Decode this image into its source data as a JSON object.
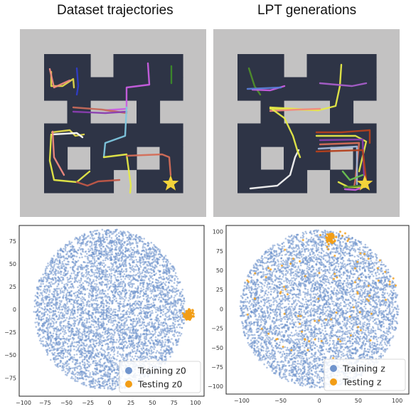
{
  "titles": {
    "left": "Dataset trajectories",
    "right": "LPT generations"
  },
  "colors": {
    "maze_background": "#c3c2c2",
    "maze_cell": "#2e3446",
    "star": "#f3d43a",
    "training_points": "#6f93cc",
    "testing_points": "#f29d16"
  },
  "icons": {
    "goal": "star-icon"
  },
  "chart_data": [
    {
      "type": "scatter",
      "title": "",
      "xlabel": "",
      "ylabel": "",
      "xlim": [
        -105,
        110
      ],
      "ylim": [
        -95,
        92
      ],
      "xticks": [
        -100,
        -75,
        -50,
        -25,
        0,
        25,
        50,
        75,
        100
      ],
      "yticks": [
        -75,
        -50,
        -25,
        0,
        25,
        50,
        75
      ],
      "grid": false,
      "legend_position": "bottom-right",
      "series": [
        {
          "name": "Training z0",
          "color": "#6f93cc",
          "cluster": {
            "center": [
              0,
              0
            ],
            "radius": 88,
            "count": 5200
          }
        },
        {
          "name": "Testing z0",
          "color": "#f29d16",
          "cluster": {
            "center": [
              92,
              -6
            ],
            "radius": 4,
            "count": 180
          }
        }
      ]
    },
    {
      "type": "scatter",
      "title": "",
      "xlabel": "",
      "ylabel": "",
      "xlim": [
        -120,
        115
      ],
      "ylim": [
        -110,
        108
      ],
      "xticks": [
        -100,
        -50,
        0,
        50,
        100
      ],
      "yticks": [
        -100,
        -75,
        -50,
        -25,
        0,
        25,
        50,
        75,
        100
      ],
      "grid": false,
      "legend_position": "bottom-right",
      "series": [
        {
          "name": "Training z",
          "color": "#6f93cc",
          "cluster": {
            "center": [
              0,
              0
            ],
            "radius": 102,
            "count": 5200
          }
        },
        {
          "name": "Testing z",
          "color": "#f29d16",
          "cluster": {
            "center": [
              15,
              92
            ],
            "radius": 5,
            "count": 70
          },
          "scattered_count": 90
        }
      ]
    }
  ]
}
